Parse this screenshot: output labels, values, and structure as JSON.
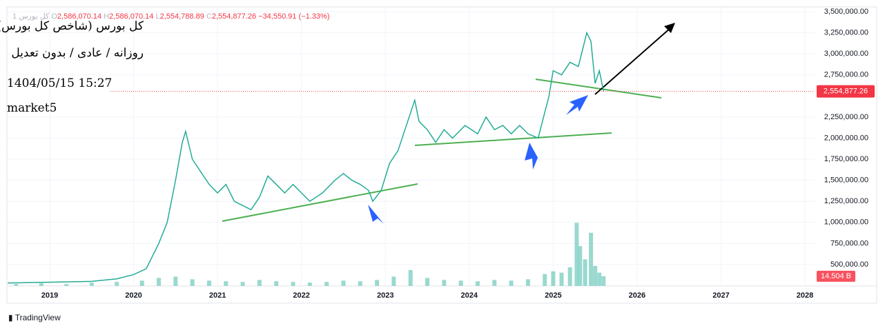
{
  "header": {
    "symbol": "1 کل بورس",
    "open_key": "O",
    "open": "2,586,070.14",
    "high_key": "H",
    "high": "2,586,070.14",
    "low_key": "L",
    "low": "2,554,788.89",
    "close_key": "C",
    "close": "2,554,877.26",
    "change": "−34,550.91 (−1.33%)"
  },
  "overlay": {
    "title": "کل بورس (شاخص کل بورس)",
    "subtitle": "روزانه / عادی / بدون تعدیل",
    "datetime": "1404/05/15 15:27",
    "source": "market5"
  },
  "brand": "TradingView",
  "chart_data": {
    "type": "line",
    "xlim": [
      2018.49,
      2028.115
    ],
    "xticks": [
      2019,
      2020,
      2021,
      2022,
      2023,
      2024,
      2025,
      2026,
      2027,
      2028
    ],
    "ylim": [
      246000,
      3557000
    ],
    "yticks": [
      {
        "value": 500000,
        "label": "500,000.00"
      },
      {
        "value": 750000,
        "label": "750,000.00"
      },
      {
        "value": 1000000,
        "label": "1,000,000.00"
      },
      {
        "value": 1250000,
        "label": "1,250,000.00"
      },
      {
        "value": 1500000,
        "label": "1,500,000.00"
      },
      {
        "value": 1750000,
        "label": "1,750,000.00"
      },
      {
        "value": 2000000,
        "label": "2,000,000.00"
      },
      {
        "value": 2250000,
        "label": "2,250,000.00"
      },
      {
        "value": 2750000,
        "label": "2,750,000.00"
      },
      {
        "value": 3000000,
        "label": "3,000,000.00"
      },
      {
        "value": 3250000,
        "label": "3,250,000.00"
      },
      {
        "value": 3500000,
        "label": "3,500,000.00"
      }
    ],
    "y2lim": [
      0,
      420
    ],
    "last_price": {
      "value": 2554877.26,
      "label": "2,554,877.26"
    },
    "last_volume": {
      "value": 14.504,
      "label": "14.504 B"
    },
    "series": [
      {
        "color": "#22ab94",
        "x": [
          2018.5,
          2019.0,
          2019.5,
          2019.8,
          2020.0,
          2020.15,
          2020.3,
          2020.4,
          2020.5,
          2020.58,
          2020.62,
          2020.7,
          2020.8,
          2020.9,
          2021.0,
          2021.1,
          2021.2,
          2021.3,
          2021.4,
          2021.5,
          2021.6,
          2021.7,
          2021.8,
          2021.9,
          2022.0,
          2022.1,
          2022.25,
          2022.4,
          2022.5,
          2022.6,
          2022.7,
          2022.8,
          2022.85,
          2022.95,
          2023.05,
          2023.15,
          2023.3,
          2023.35,
          2023.4,
          2023.5,
          2023.6,
          2023.7,
          2023.8,
          2023.95,
          2024.1,
          2024.2,
          2024.3,
          2024.4,
          2024.5,
          2024.6,
          2024.7,
          2024.82,
          2024.95,
          2025.0,
          2025.1,
          2025.2,
          2025.3,
          2025.4,
          2025.45,
          2025.5,
          2025.55,
          2025.6
        ],
        "values": [
          280000,
          290000,
          300000,
          330000,
          380000,
          450000,
          750000,
          1000000,
          1500000,
          1950000,
          2080000,
          1750000,
          1600000,
          1450000,
          1350000,
          1450000,
          1250000,
          1200000,
          1150000,
          1300000,
          1550000,
          1450000,
          1350000,
          1450000,
          1350000,
          1250000,
          1350000,
          1500000,
          1580000,
          1500000,
          1450000,
          1380000,
          1250000,
          1380000,
          1700000,
          1850000,
          2300000,
          2450000,
          2200000,
          2100000,
          1950000,
          2100000,
          2000000,
          2150000,
          2050000,
          2250000,
          2100000,
          2150000,
          2050000,
          2150000,
          2050000,
          2000000,
          2500000,
          2800000,
          2750000,
          2900000,
          2850000,
          3250000,
          3150000,
          2650000,
          2800000,
          2555000
        ]
      },
      {
        "axis": "y2",
        "color": "#7fcfc3",
        "x": [
          2018.6,
          2018.9,
          2019.2,
          2019.5,
          2019.8,
          2020.1,
          2020.3,
          2020.5,
          2020.7,
          2020.9,
          2021.1,
          2021.3,
          2021.5,
          2021.7,
          2021.9,
          2022.1,
          2022.3,
          2022.5,
          2022.7,
          2022.9,
          2023.1,
          2023.3,
          2023.5,
          2023.7,
          2023.9,
          2024.1,
          2024.3,
          2024.5,
          2024.7,
          2024.9,
          2025.0,
          2025.1,
          2025.2,
          2025.28,
          2025.32,
          2025.38,
          2025.45,
          2025.5,
          2025.55,
          2025.6
        ],
        "values": [
          3,
          4,
          3,
          5,
          6,
          8,
          12,
          14,
          10,
          8,
          7,
          6,
          9,
          7,
          6,
          5,
          6,
          8,
          7,
          9,
          14,
          24,
          12,
          9,
          8,
          7,
          9,
          8,
          10,
          18,
          22,
          20,
          28,
          95,
          60,
          40,
          80,
          30,
          20,
          14.5
        ]
      }
    ]
  }
}
